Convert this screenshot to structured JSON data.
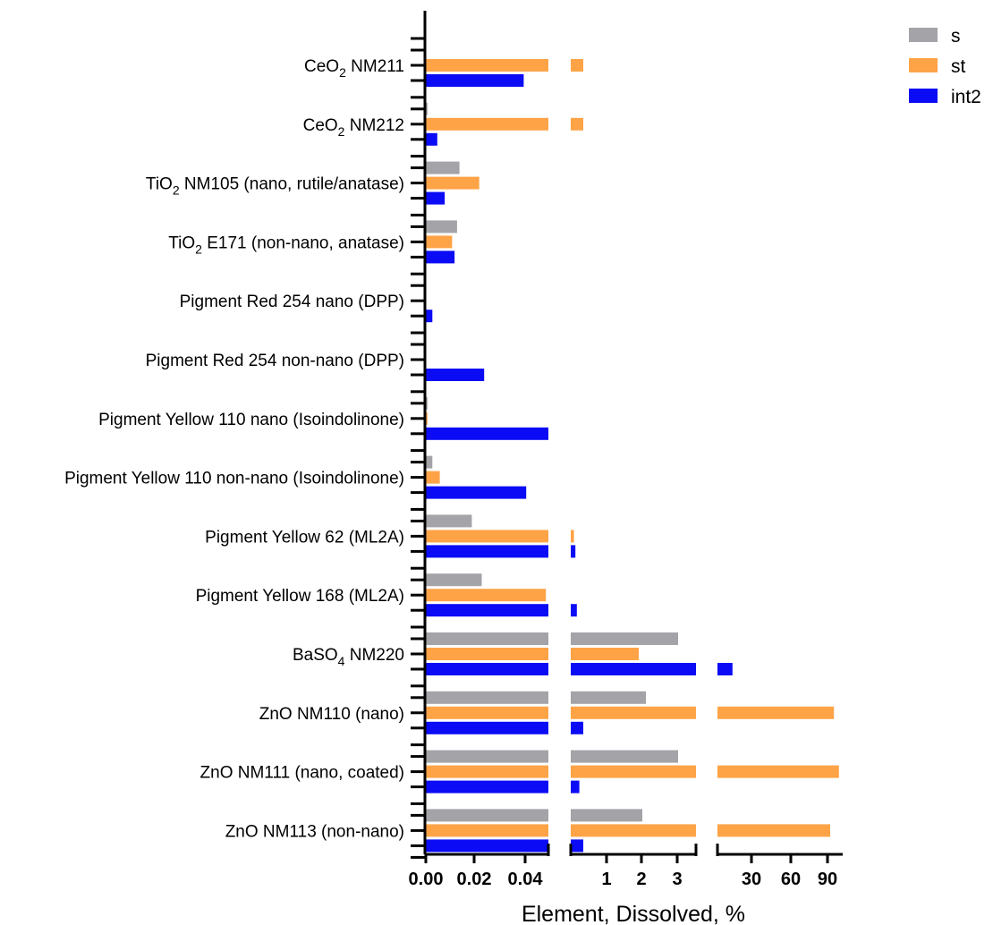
{
  "chart_data": {
    "type": "bar",
    "orientation": "horizontal",
    "xlabel": "Element, Dissolved, %",
    "ylabel": "",
    "title": "",
    "grid": false,
    "legend_position": "top-right",
    "x_axis_segments": [
      {
        "scale": "linear",
        "range": [
          0,
          0.05
        ],
        "ticks": [
          "0.00",
          "0.02",
          "0.04"
        ]
      },
      {
        "scale": "linear",
        "range": [
          0,
          3.5
        ],
        "ticks": [
          "1",
          "2",
          "3"
        ]
      },
      {
        "scale": "linear",
        "range": [
          0,
          100
        ],
        "ticks": [
          "30",
          "60",
          "90"
        ]
      }
    ],
    "categories": [
      {
        "name": "CeO",
        "sub": "2",
        "rest": " NM211"
      },
      {
        "name": "CeO",
        "sub": "2",
        "rest": " NM212"
      },
      {
        "name": "TiO",
        "sub": "2",
        "rest": " NM105 (nano, rutile/anatase)"
      },
      {
        "name": "TiO",
        "sub": "2",
        "rest": " E171 (non-nano, anatase)"
      },
      {
        "name": "Pigment Red 254 nano (DPP)",
        "sub": "",
        "rest": ""
      },
      {
        "name": "Pigment Red 254 non-nano (DPP)",
        "sub": "",
        "rest": ""
      },
      {
        "name": "Pigment Yellow 110 nano (Isoindolinone)",
        "sub": "",
        "rest": ""
      },
      {
        "name": "Pigment Yellow 110 non-nano (Isoindolinone)",
        "sub": "",
        "rest": ""
      },
      {
        "name": "Pigment Yellow 62 (ML2A)",
        "sub": "",
        "rest": ""
      },
      {
        "name": "Pigment Yellow 168 (ML2A)",
        "sub": "",
        "rest": ""
      },
      {
        "name": "BaSO",
        "sub": "4",
        "rest": " NM220"
      },
      {
        "name": "ZnO NM110 (nano)",
        "sub": "",
        "rest": ""
      },
      {
        "name": "ZnO NM111 (nano, coated)",
        "sub": "",
        "rest": ""
      },
      {
        "name": "ZnO NM113 (non-nano)",
        "sub": "",
        "rest": ""
      }
    ],
    "series": [
      {
        "name": "s",
        "color": "#a3a3a8",
        "values": [
          0,
          0.001,
          0.014,
          0.013,
          0,
          0,
          0.001,
          0.003,
          0.019,
          0.023,
          3.0,
          2.1,
          3.0,
          2.0
        ]
      },
      {
        "name": "st",
        "color": "#ffa347",
        "values": [
          0.35,
          0.35,
          0.022,
          0.011,
          0,
          0,
          0.001,
          0.006,
          0.09,
          0.049,
          1.9,
          93,
          97,
          90
        ]
      },
      {
        "name": "int2",
        "color": "#0b0bf5",
        "values": [
          0.04,
          0.005,
          0.008,
          0.012,
          0.003,
          0.024,
          0.05,
          0.041,
          0.13,
          0.17,
          12,
          0.35,
          0.24,
          0.35
        ]
      }
    ]
  }
}
